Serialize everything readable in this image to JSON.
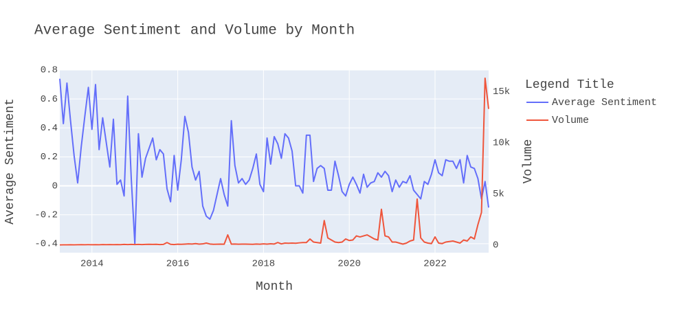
{
  "chart_data": {
    "type": "line",
    "title": "Average Sentiment and Volume by Month",
    "xlabel": "Month",
    "ylabel": "Average Sentiment",
    "y2label": "Volume",
    "legend_title": "Legend Title",
    "legend_position": "right",
    "grid": true,
    "x": [
      "2013-04",
      "2013-05",
      "2013-06",
      "2013-07",
      "2013-08",
      "2013-09",
      "2013-10",
      "2013-11",
      "2013-12",
      "2014-01",
      "2014-02",
      "2014-03",
      "2014-04",
      "2014-05",
      "2014-06",
      "2014-07",
      "2014-08",
      "2014-09",
      "2014-10",
      "2014-11",
      "2014-12",
      "2015-01",
      "2015-02",
      "2015-03",
      "2015-04",
      "2015-05",
      "2015-06",
      "2015-07",
      "2015-08",
      "2015-09",
      "2015-10",
      "2015-11",
      "2015-12",
      "2016-01",
      "2016-02",
      "2016-03",
      "2016-04",
      "2016-05",
      "2016-06",
      "2016-07",
      "2016-08",
      "2016-09",
      "2016-10",
      "2016-11",
      "2016-12",
      "2017-01",
      "2017-02",
      "2017-03",
      "2017-04",
      "2017-05",
      "2017-06",
      "2017-07",
      "2017-08",
      "2017-09",
      "2017-10",
      "2017-11",
      "2017-12",
      "2018-01",
      "2018-02",
      "2018-03",
      "2018-04",
      "2018-05",
      "2018-06",
      "2018-07",
      "2018-08",
      "2018-09",
      "2018-10",
      "2018-11",
      "2018-12",
      "2019-01",
      "2019-02",
      "2019-03",
      "2019-04",
      "2019-05",
      "2019-06",
      "2019-07",
      "2019-08",
      "2019-09",
      "2019-10",
      "2019-11",
      "2019-12",
      "2020-01",
      "2020-02",
      "2020-03",
      "2020-04",
      "2020-05",
      "2020-06",
      "2020-07",
      "2020-08",
      "2020-09",
      "2020-10",
      "2020-11",
      "2020-12",
      "2021-01",
      "2021-02",
      "2021-03",
      "2021-04",
      "2021-05",
      "2021-06",
      "2021-07",
      "2021-08",
      "2021-09",
      "2021-10",
      "2021-11",
      "2021-12",
      "2022-01",
      "2022-02",
      "2022-03",
      "2022-04",
      "2022-05",
      "2022-06",
      "2022-07",
      "2022-08",
      "2022-09",
      "2022-10",
      "2022-11",
      "2022-12",
      "2023-01",
      "2023-02",
      "2023-03",
      "2023-04"
    ],
    "xlim": [
      "2013-04",
      "2023-04"
    ],
    "xticks": [
      {
        "value": "2014-01",
        "label": "2014"
      },
      {
        "value": "2016-01",
        "label": "2016"
      },
      {
        "value": "2018-01",
        "label": "2018"
      },
      {
        "value": "2020-01",
        "label": "2020"
      },
      {
        "value": "2022-01",
        "label": "2022"
      }
    ],
    "ylim": [
      -0.462,
      0.8
    ],
    "yticks": [
      -0.4,
      -0.2,
      0,
      0.2,
      0.4,
      0.6,
      0.8
    ],
    "y2lim": [
      -740,
      17100
    ],
    "y2ticks": [
      0,
      {
        "value": 5000,
        "label": "5k"
      },
      {
        "value": 10000,
        "label": "10k"
      },
      {
        "value": 15000,
        "label": "15k"
      }
    ],
    "series": [
      {
        "name": "Average Sentiment",
        "color": "#636efa",
        "axis": "y",
        "values": [
          0.74,
          0.43,
          0.71,
          0.45,
          0.21,
          0.02,
          0.27,
          0.48,
          0.68,
          0.39,
          0.7,
          0.25,
          0.47,
          0.3,
          0.13,
          0.46,
          0.01,
          0.04,
          -0.07,
          0.62,
          0.05,
          -0.4,
          0.36,
          0.06,
          0.19,
          0.26,
          0.33,
          0.18,
          0.25,
          0.22,
          -0.02,
          -0.11,
          0.21,
          -0.03,
          0.18,
          0.48,
          0.37,
          0.13,
          0.04,
          0.1,
          -0.14,
          -0.21,
          -0.23,
          -0.17,
          -0.06,
          0.05,
          -0.06,
          -0.14,
          0.45,
          0.14,
          0.02,
          0.05,
          0.01,
          0.04,
          0.12,
          0.22,
          0.01,
          -0.04,
          0.33,
          0.15,
          0.34,
          0.29,
          0.19,
          0.36,
          0.33,
          0.24,
          0.0,
          0.0,
          -0.05,
          0.35,
          0.35,
          0.03,
          0.12,
          0.14,
          0.12,
          -0.03,
          -0.03,
          0.17,
          0.07,
          -0.04,
          -0.07,
          0.01,
          0.06,
          0.01,
          -0.05,
          0.08,
          -0.01,
          0.02,
          0.03,
          0.09,
          0.06,
          0.1,
          0.07,
          -0.04,
          0.04,
          -0.01,
          0.03,
          0.02,
          0.07,
          -0.03,
          -0.06,
          -0.09,
          0.03,
          0.01,
          0.08,
          0.18,
          0.09,
          0.07,
          0.18,
          0.17,
          0.17,
          0.12,
          0.18,
          0.02,
          0.21,
          0.13,
          0.12,
          0.05,
          -0.09,
          0.03,
          -0.15
        ]
      },
      {
        "name": "Volume",
        "color": "#ef553b",
        "axis": "y2",
        "values": [
          20,
          30,
          30,
          40,
          30,
          40,
          50,
          40,
          50,
          40,
          50,
          40,
          60,
          50,
          60,
          50,
          60,
          50,
          70,
          60,
          70,
          60,
          70,
          60,
          70,
          80,
          70,
          80,
          60,
          70,
          250,
          80,
          60,
          90,
          80,
          100,
          120,
          110,
          150,
          100,
          120,
          200,
          110,
          80,
          90,
          100,
          90,
          1000,
          100,
          110,
          90,
          100,
          100,
          90,
          80,
          110,
          90,
          120,
          100,
          130,
          110,
          250,
          120,
          200,
          180,
          200,
          180,
          220,
          250,
          250,
          600,
          300,
          250,
          200,
          2400,
          700,
          500,
          300,
          250,
          300,
          600,
          450,
          500,
          900,
          800,
          900,
          1000,
          800,
          600,
          500,
          3500,
          900,
          800,
          300,
          300,
          200,
          100,
          200,
          400,
          500,
          4500,
          700,
          300,
          200,
          150,
          800,
          200,
          150,
          300,
          350,
          400,
          300,
          200,
          500,
          400,
          800,
          600,
          2000,
          3200,
          16300,
          13300
        ]
      }
    ]
  }
}
